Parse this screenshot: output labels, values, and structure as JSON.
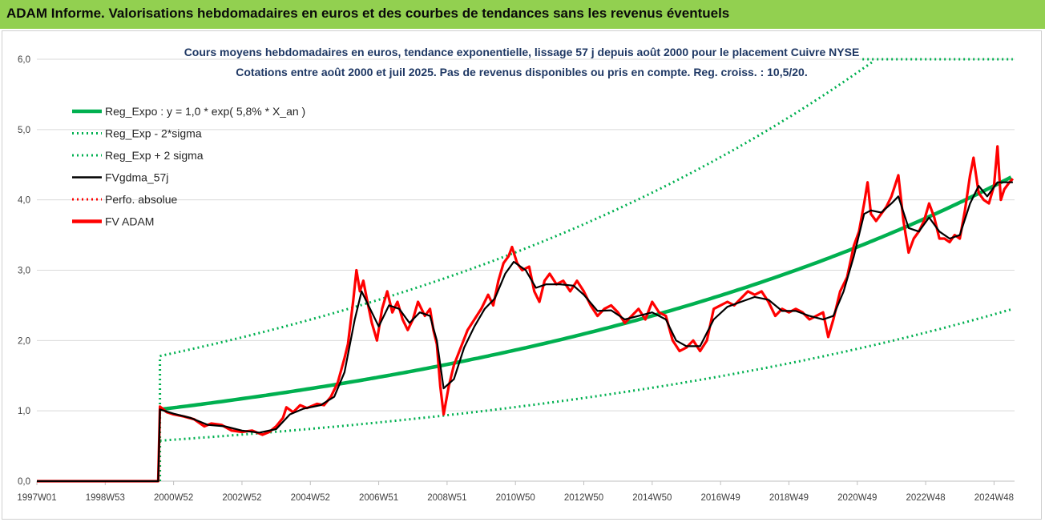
{
  "header": {
    "title": "ADAM Informe. Valorisations hebdomadaires en euros et des courbes de tendances sans les revenus éventuels"
  },
  "chart_data": {
    "type": "line",
    "subtitle_line1": "Cours moyens hebdomadaires en euros, tendance exponentielle, lissage 57 j depuis août 2000 pour le placement Cuivre NYSE",
    "subtitle_line2": "Cotations entre août 2000 et juil 2025. Pas de revenus disponibles ou pris en compte. Reg. croiss. : 10,5/20.",
    "x_tick_labels": [
      "1997W01",
      "1998W53",
      "2000W52",
      "2002W52",
      "2004W52",
      "2006W51",
      "2008W51",
      "2010W50",
      "2012W50",
      "2014W50",
      "2016W49",
      "2018W49",
      "2020W49",
      "2022W48",
      "2024W48"
    ],
    "x_tick_years": [
      1997.0,
      1999.0,
      2001.0,
      2003.0,
      2005.0,
      2007.0,
      2009.0,
      2011.0,
      2013.0,
      2015.0,
      2017.0,
      2019.0,
      2021.0,
      2023.0,
      2025.0
    ],
    "x_range": [
      1997.0,
      2025.6
    ],
    "y_tick_labels": [
      "0,0",
      "1,0",
      "2,0",
      "3,0",
      "4,0",
      "5,0",
      "6,0"
    ],
    "ylim": [
      0,
      6
    ],
    "grid": "horizontal",
    "legend_position": "top-left",
    "colors": {
      "reg_expo": "#00b050",
      "sigma_bands": "#00b050",
      "fvgdma": "#000000",
      "perfo": "#ff0000",
      "fvadam": "#ff0000",
      "grid": "#d9d9d9",
      "title_bar": "#92d050",
      "subtitle": "#1f3864"
    },
    "legend": [
      {
        "key": "reg_expo",
        "label": "Reg_Expo : y = 1,0 * exp( 5,8% *  X_an )",
        "style": "solid-thick",
        "color": "#00b050"
      },
      {
        "key": "reg_minus",
        "label": "Reg_Exp - 2*sigma",
        "style": "dotted",
        "color": "#00b050"
      },
      {
        "key": "reg_plus",
        "label": "Reg_Exp + 2 sigma",
        "style": "dotted",
        "color": "#00b050"
      },
      {
        "key": "fvgdma",
        "label": "FVgdma_57j",
        "style": "solid",
        "color": "#000000"
      },
      {
        "key": "perfo",
        "label": "Perfo. absolue",
        "style": "dotted",
        "color": "#ff0000"
      },
      {
        "key": "fvadam",
        "label": "FV ADAM",
        "style": "solid-thick",
        "color": "#ff0000"
      }
    ],
    "regression": {
      "start_year": 2000.6,
      "end_year": 2025.55,
      "start_value": 1.02,
      "growth_rate": 0.058,
      "minus_factor": 0.565,
      "plus_factor": 1.745,
      "plus_cap": 6.0
    },
    "series": [
      {
        "name": "FV ADAM",
        "points": [
          [
            1997.0,
            0
          ],
          [
            2000.55,
            0
          ],
          [
            2000.6,
            1.06
          ],
          [
            2000.8,
            0.98
          ],
          [
            2001.0,
            0.95
          ],
          [
            2001.3,
            0.92
          ],
          [
            2001.6,
            0.88
          ],
          [
            2001.9,
            0.78
          ],
          [
            2002.1,
            0.82
          ],
          [
            2002.4,
            0.8
          ],
          [
            2002.7,
            0.72
          ],
          [
            2003.0,
            0.7
          ],
          [
            2003.3,
            0.72
          ],
          [
            2003.6,
            0.66
          ],
          [
            2003.8,
            0.7
          ],
          [
            2004.0,
            0.78
          ],
          [
            2004.2,
            0.9
          ],
          [
            2004.3,
            1.05
          ],
          [
            2004.5,
            0.98
          ],
          [
            2004.7,
            1.08
          ],
          [
            2004.9,
            1.04
          ],
          [
            2005.2,
            1.1
          ],
          [
            2005.4,
            1.08
          ],
          [
            2005.6,
            1.2
          ],
          [
            2005.8,
            1.4
          ],
          [
            2006.0,
            1.75
          ],
          [
            2006.1,
            1.95
          ],
          [
            2006.25,
            2.55
          ],
          [
            2006.35,
            3.0
          ],
          [
            2006.45,
            2.7
          ],
          [
            2006.55,
            2.85
          ],
          [
            2006.65,
            2.6
          ],
          [
            2006.8,
            2.25
          ],
          [
            2006.95,
            2.0
          ],
          [
            2007.1,
            2.45
          ],
          [
            2007.25,
            2.7
          ],
          [
            2007.4,
            2.4
          ],
          [
            2007.55,
            2.55
          ],
          [
            2007.7,
            2.3
          ],
          [
            2007.85,
            2.15
          ],
          [
            2008.0,
            2.3
          ],
          [
            2008.15,
            2.55
          ],
          [
            2008.35,
            2.35
          ],
          [
            2008.5,
            2.45
          ],
          [
            2008.6,
            2.15
          ],
          [
            2008.7,
            1.95
          ],
          [
            2008.8,
            1.35
          ],
          [
            2008.9,
            0.95
          ],
          [
            2009.05,
            1.35
          ],
          [
            2009.2,
            1.65
          ],
          [
            2009.4,
            1.9
          ],
          [
            2009.6,
            2.15
          ],
          [
            2009.8,
            2.3
          ],
          [
            2010.0,
            2.45
          ],
          [
            2010.2,
            2.65
          ],
          [
            2010.35,
            2.5
          ],
          [
            2010.5,
            2.85
          ],
          [
            2010.65,
            3.1
          ],
          [
            2010.8,
            3.2
          ],
          [
            2010.9,
            3.33
          ],
          [
            2011.05,
            3.1
          ],
          [
            2011.2,
            3.0
          ],
          [
            2011.4,
            3.05
          ],
          [
            2011.55,
            2.7
          ],
          [
            2011.7,
            2.55
          ],
          [
            2011.85,
            2.85
          ],
          [
            2012.0,
            2.95
          ],
          [
            2012.2,
            2.8
          ],
          [
            2012.4,
            2.85
          ],
          [
            2012.6,
            2.7
          ],
          [
            2012.8,
            2.85
          ],
          [
            2013.0,
            2.7
          ],
          [
            2013.2,
            2.5
          ],
          [
            2013.4,
            2.35
          ],
          [
            2013.6,
            2.45
          ],
          [
            2013.8,
            2.5
          ],
          [
            2014.0,
            2.4
          ],
          [
            2014.2,
            2.25
          ],
          [
            2014.4,
            2.35
          ],
          [
            2014.6,
            2.45
          ],
          [
            2014.8,
            2.3
          ],
          [
            2015.0,
            2.55
          ],
          [
            2015.2,
            2.4
          ],
          [
            2015.4,
            2.35
          ],
          [
            2015.6,
            2.0
          ],
          [
            2015.8,
            1.85
          ],
          [
            2016.0,
            1.9
          ],
          [
            2016.2,
            2.0
          ],
          [
            2016.4,
            1.85
          ],
          [
            2016.6,
            2.0
          ],
          [
            2016.8,
            2.45
          ],
          [
            2017.0,
            2.5
          ],
          [
            2017.2,
            2.55
          ],
          [
            2017.4,
            2.5
          ],
          [
            2017.6,
            2.6
          ],
          [
            2017.8,
            2.7
          ],
          [
            2018.0,
            2.65
          ],
          [
            2018.2,
            2.7
          ],
          [
            2018.4,
            2.55
          ],
          [
            2018.6,
            2.35
          ],
          [
            2018.8,
            2.45
          ],
          [
            2019.0,
            2.4
          ],
          [
            2019.2,
            2.45
          ],
          [
            2019.4,
            2.4
          ],
          [
            2019.6,
            2.3
          ],
          [
            2019.8,
            2.35
          ],
          [
            2020.0,
            2.4
          ],
          [
            2020.15,
            2.05
          ],
          [
            2020.3,
            2.3
          ],
          [
            2020.5,
            2.7
          ],
          [
            2020.7,
            2.9
          ],
          [
            2020.9,
            3.35
          ],
          [
            2021.05,
            3.55
          ],
          [
            2021.2,
            3.95
          ],
          [
            2021.3,
            4.25
          ],
          [
            2021.4,
            3.8
          ],
          [
            2021.55,
            3.7
          ],
          [
            2021.7,
            3.8
          ],
          [
            2021.85,
            3.9
          ],
          [
            2022.0,
            4.05
          ],
          [
            2022.1,
            4.2
          ],
          [
            2022.2,
            4.35
          ],
          [
            2022.35,
            3.7
          ],
          [
            2022.5,
            3.25
          ],
          [
            2022.65,
            3.45
          ],
          [
            2022.8,
            3.55
          ],
          [
            2022.95,
            3.7
          ],
          [
            2023.1,
            3.95
          ],
          [
            2023.25,
            3.75
          ],
          [
            2023.4,
            3.45
          ],
          [
            2023.55,
            3.45
          ],
          [
            2023.7,
            3.4
          ],
          [
            2023.85,
            3.5
          ],
          [
            2024.0,
            3.45
          ],
          [
            2024.15,
            3.85
          ],
          [
            2024.3,
            4.35
          ],
          [
            2024.4,
            4.6
          ],
          [
            2024.55,
            4.1
          ],
          [
            2024.7,
            4.0
          ],
          [
            2024.85,
            3.95
          ],
          [
            2025.0,
            4.2
          ],
          [
            2025.1,
            4.76
          ],
          [
            2025.2,
            4.0
          ],
          [
            2025.3,
            4.15
          ],
          [
            2025.45,
            4.25
          ],
          [
            2025.55,
            4.3
          ]
        ]
      },
      {
        "name": "FVgdma_57j",
        "points": [
          [
            1997.0,
            0
          ],
          [
            2000.55,
            0
          ],
          [
            2000.6,
            1.02
          ],
          [
            2001.0,
            0.96
          ],
          [
            2001.5,
            0.9
          ],
          [
            2002.0,
            0.8
          ],
          [
            2002.5,
            0.78
          ],
          [
            2003.0,
            0.72
          ],
          [
            2003.5,
            0.69
          ],
          [
            2004.0,
            0.74
          ],
          [
            2004.4,
            0.95
          ],
          [
            2004.8,
            1.03
          ],
          [
            2005.3,
            1.08
          ],
          [
            2005.7,
            1.2
          ],
          [
            2006.0,
            1.55
          ],
          [
            2006.3,
            2.3
          ],
          [
            2006.5,
            2.7
          ],
          [
            2006.8,
            2.4
          ],
          [
            2007.0,
            2.2
          ],
          [
            2007.3,
            2.5
          ],
          [
            2007.6,
            2.45
          ],
          [
            2007.9,
            2.25
          ],
          [
            2008.2,
            2.4
          ],
          [
            2008.5,
            2.35
          ],
          [
            2008.7,
            2.0
          ],
          [
            2008.9,
            1.32
          ],
          [
            2009.2,
            1.45
          ],
          [
            2009.5,
            1.9
          ],
          [
            2009.8,
            2.2
          ],
          [
            2010.1,
            2.45
          ],
          [
            2010.4,
            2.6
          ],
          [
            2010.7,
            2.95
          ],
          [
            2010.95,
            3.12
          ],
          [
            2011.3,
            3.0
          ],
          [
            2011.6,
            2.75
          ],
          [
            2011.9,
            2.8
          ],
          [
            2012.3,
            2.8
          ],
          [
            2012.7,
            2.78
          ],
          [
            2013.0,
            2.65
          ],
          [
            2013.4,
            2.42
          ],
          [
            2013.8,
            2.43
          ],
          [
            2014.2,
            2.3
          ],
          [
            2014.6,
            2.35
          ],
          [
            2015.0,
            2.4
          ],
          [
            2015.4,
            2.3
          ],
          [
            2015.7,
            2.0
          ],
          [
            2016.0,
            1.92
          ],
          [
            2016.4,
            1.92
          ],
          [
            2016.8,
            2.3
          ],
          [
            2017.2,
            2.48
          ],
          [
            2017.6,
            2.55
          ],
          [
            2018.0,
            2.62
          ],
          [
            2018.4,
            2.58
          ],
          [
            2018.8,
            2.42
          ],
          [
            2019.2,
            2.42
          ],
          [
            2019.6,
            2.35
          ],
          [
            2020.0,
            2.3
          ],
          [
            2020.3,
            2.35
          ],
          [
            2020.6,
            2.7
          ],
          [
            2020.9,
            3.2
          ],
          [
            2021.2,
            3.8
          ],
          [
            2021.4,
            3.85
          ],
          [
            2021.7,
            3.82
          ],
          [
            2022.0,
            3.95
          ],
          [
            2022.2,
            4.05
          ],
          [
            2022.5,
            3.6
          ],
          [
            2022.8,
            3.55
          ],
          [
            2023.1,
            3.75
          ],
          [
            2023.4,
            3.55
          ],
          [
            2023.7,
            3.45
          ],
          [
            2024.0,
            3.5
          ],
          [
            2024.3,
            3.95
          ],
          [
            2024.55,
            4.2
          ],
          [
            2024.8,
            4.05
          ],
          [
            2025.1,
            4.25
          ],
          [
            2025.55,
            4.25
          ]
        ]
      }
    ]
  }
}
